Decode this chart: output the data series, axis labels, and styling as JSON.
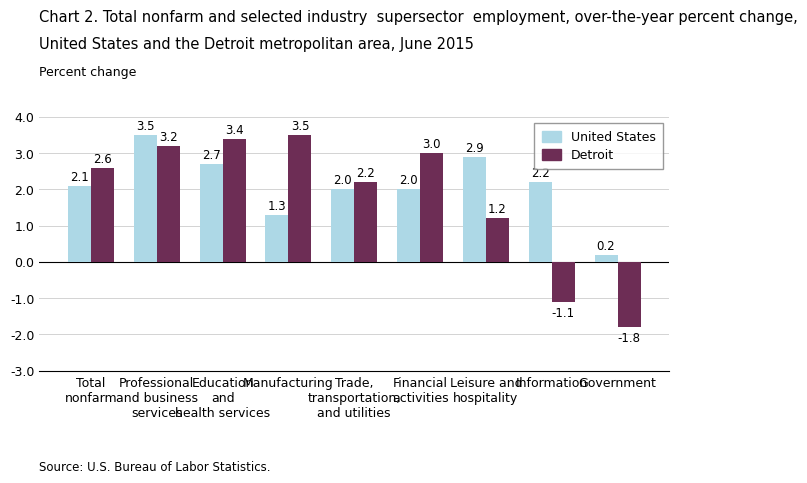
{
  "title_line1": "Chart 2. Total nonfarm and selected industry  supersector  employment, over-the-year percent change,",
  "title_line2": "United States and the Detroit metropolitan area, June 2015",
  "ylabel": "Percent change",
  "source": "Source: U.S. Bureau of Labor Statistics.",
  "categories": [
    "Total\nnonfarm",
    "Professional\nand business\nservices",
    "Education\nand\nhealth services",
    "Manufacturing",
    "Trade,\ntransportation,\nand utilities",
    "Financial\nactivities",
    "Leisure and\nhospitality",
    "Information",
    "Government"
  ],
  "us_values": [
    2.1,
    3.5,
    2.7,
    1.3,
    2.0,
    2.0,
    2.9,
    2.2,
    0.2
  ],
  "detroit_values": [
    2.6,
    3.2,
    3.4,
    3.5,
    2.2,
    3.0,
    1.2,
    -1.1,
    -1.8
  ],
  "us_color": "#add8e6",
  "detroit_color": "#6d2d55",
  "ylim": [
    -3.0,
    4.0
  ],
  "yticks": [
    -3,
    -2,
    -1,
    0,
    1,
    2,
    3,
    4
  ],
  "ytick_labels": [
    "-3.0",
    "-2.0",
    "-1.0",
    "0.0",
    "1.0",
    "2.0",
    "3.0",
    "4.0"
  ],
  "legend_labels": [
    "United States",
    "Detroit"
  ],
  "bar_width": 0.35,
  "title_fontsize": 10.5,
  "axis_fontsize": 9,
  "tick_fontsize": 9,
  "label_fontsize": 8.5
}
